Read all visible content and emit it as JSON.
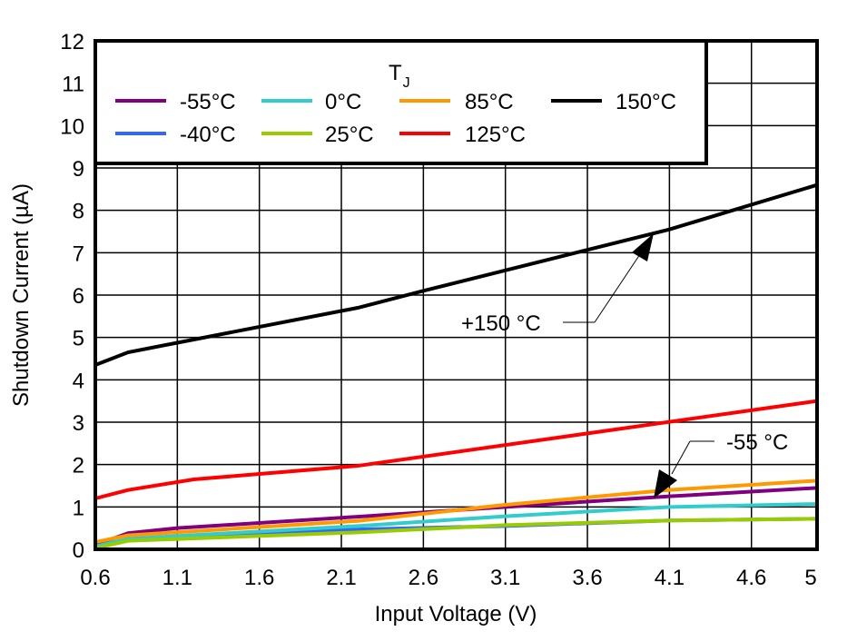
{
  "chart_data": {
    "type": "line",
    "title": "",
    "xlabel": "Input Voltage (V)",
    "ylabel": "Shutdown Current (µA)",
    "xlim": [
      0.6,
      5
    ],
    "ylim": [
      0,
      12
    ],
    "xticks": [
      "0.6",
      "1.1",
      "1.6",
      "2.1",
      "2.6",
      "3.1",
      "3.6",
      "4.1",
      "4.6",
      "5"
    ],
    "yticks": [
      "0",
      "1",
      "2",
      "3",
      "4",
      "5",
      "6",
      "7",
      "8",
      "9",
      "10",
      "11",
      "12"
    ],
    "grid": true,
    "legend": {
      "title": "T",
      "title_sub": "J",
      "placement": "top"
    },
    "series": [
      {
        "name": "-55°C",
        "color": "#800080",
        "x": [
          0.6,
          0.8,
          1.1,
          2.2,
          3.1,
          4.1,
          5
        ],
        "y": [
          0.1,
          0.38,
          0.5,
          0.77,
          1.0,
          1.25,
          1.45
        ]
      },
      {
        "name": "-40°C",
        "color": "#3366ff",
        "x": [
          0.6,
          0.8,
          2.2,
          3.1,
          4.1,
          5
        ],
        "y": [
          0.05,
          0.23,
          0.47,
          0.55,
          0.68,
          0.72
        ]
      },
      {
        "name": "0°C",
        "color": "#33cccc",
        "x": [
          0.6,
          0.8,
          2.2,
          3.1,
          4.1,
          5
        ],
        "y": [
          0.07,
          0.25,
          0.55,
          0.78,
          1.0,
          1.07
        ]
      },
      {
        "name": "25°C",
        "color": "#99cc00",
        "x": [
          0.6,
          0.8,
          2.2,
          3.1,
          4.1,
          5
        ],
        "y": [
          0.03,
          0.2,
          0.4,
          0.57,
          0.68,
          0.72
        ]
      },
      {
        "name": "85°C",
        "color": "#ff9900",
        "x": [
          0.6,
          0.8,
          2.2,
          3.1,
          4.1,
          5
        ],
        "y": [
          0.17,
          0.33,
          0.67,
          1.05,
          1.4,
          1.62
        ]
      },
      {
        "name": "125°C",
        "color": "#ff0000",
        "x": [
          0.6,
          0.8,
          1.2,
          2.2,
          5
        ],
        "y": [
          1.2,
          1.4,
          1.65,
          1.97,
          3.5
        ]
      },
      {
        "name": "150°C",
        "color": "#000000",
        "x": [
          0.6,
          0.8,
          1.2,
          2.2,
          2.6,
          4.1,
          5
        ],
        "y": [
          4.35,
          4.65,
          4.95,
          5.7,
          6.1,
          7.55,
          8.6
        ]
      }
    ],
    "annotations": [
      {
        "text": "+150 °C",
        "target": [
          4.1,
          7.55
        ]
      },
      {
        "text": "-55 °C",
        "target": [
          3.98,
          1.22
        ]
      }
    ]
  }
}
